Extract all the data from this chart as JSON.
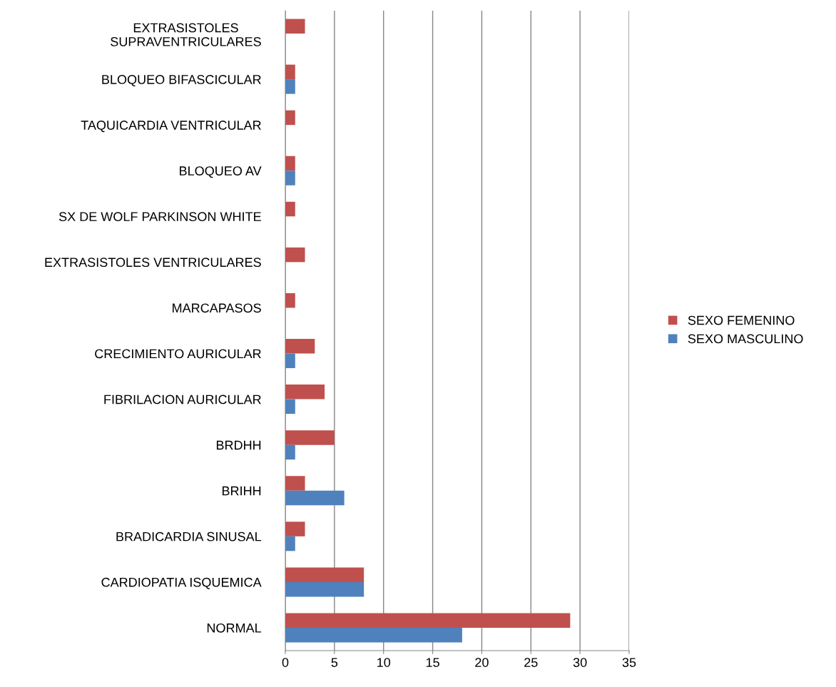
{
  "chart_data": {
    "type": "bar",
    "orientation": "horizontal",
    "categories": [
      "EXTRASISTOLES\nSUPRAVENTRICULARES",
      "BLOQUEO BIFASCICULAR",
      "TAQUICARDIA VENTRICULAR",
      "BLOQUEO AV",
      "SX DE WOLF PARKINSON WHITE",
      "EXTRASISTOLES VENTRICULARES",
      "MARCAPASOS",
      "CRECIMIENTO AURICULAR",
      "FIBRILACION AURICULAR",
      "BRDHH",
      "BRIHH",
      "BRADICARDIA SINUSAL",
      "CARDIOPATIA ISQUEMICA",
      "NORMAL"
    ],
    "series": [
      {
        "name": "SEXO FEMENINO",
        "color": "#c0504d",
        "values": [
          2,
          1,
          1,
          1,
          1,
          2,
          1,
          3,
          4,
          5,
          2,
          2,
          8,
          29
        ]
      },
      {
        "name": "SEXO MASCULINO",
        "color": "#4f81bd",
        "values": [
          null,
          1,
          null,
          1,
          null,
          null,
          null,
          1,
          1,
          1,
          6,
          1,
          8,
          18
        ]
      }
    ],
    "xlim": [
      0,
      35
    ],
    "xticks": [
      0,
      5,
      10,
      15,
      20,
      25,
      30,
      35
    ],
    "grid": "x",
    "legend": "right"
  }
}
